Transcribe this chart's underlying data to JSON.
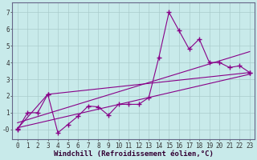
{
  "background_color": "#c8eaea",
  "grid_color": "#aacccc",
  "line_color": "#880088",
  "marker": "+",
  "markersize": 4,
  "markeredgewidth": 1.0,
  "linewidth": 0.8,
  "xlabel": "Windchill (Refroidissement éolien,°C)",
  "xlabel_fontsize": 6.5,
  "tick_fontsize": 5.5,
  "ylim": [
    -0.6,
    7.6
  ],
  "xlim": [
    -0.5,
    23.5
  ],
  "yticks": [
    0,
    1,
    2,
    3,
    4,
    5,
    6,
    7
  ],
  "ytick_labels": [
    "-0",
    "1",
    "2",
    "3",
    "4",
    "5",
    "6",
    "7"
  ],
  "xticks": [
    0,
    1,
    2,
    3,
    4,
    5,
    6,
    7,
    8,
    9,
    10,
    11,
    12,
    13,
    14,
    15,
    16,
    17,
    18,
    19,
    20,
    21,
    22,
    23
  ],
  "series1": [
    0,
    1.0,
    1.0,
    2.1,
    -0.2,
    0.3,
    0.8,
    1.4,
    1.35,
    0.85,
    1.5,
    1.5,
    1.5,
    1.9,
    4.3,
    7.0,
    5.9,
    4.8,
    5.4,
    4.0,
    4.0,
    3.7,
    3.8,
    3.4
  ],
  "series2_x": [
    0,
    3,
    23
  ],
  "series2_y": [
    0.05,
    2.1,
    3.4
  ],
  "series3_x": [
    0,
    23
  ],
  "series3_y": [
    0.1,
    3.3
  ],
  "series4_x": [
    0,
    23
  ],
  "series4_y": [
    0.4,
    4.65
  ]
}
